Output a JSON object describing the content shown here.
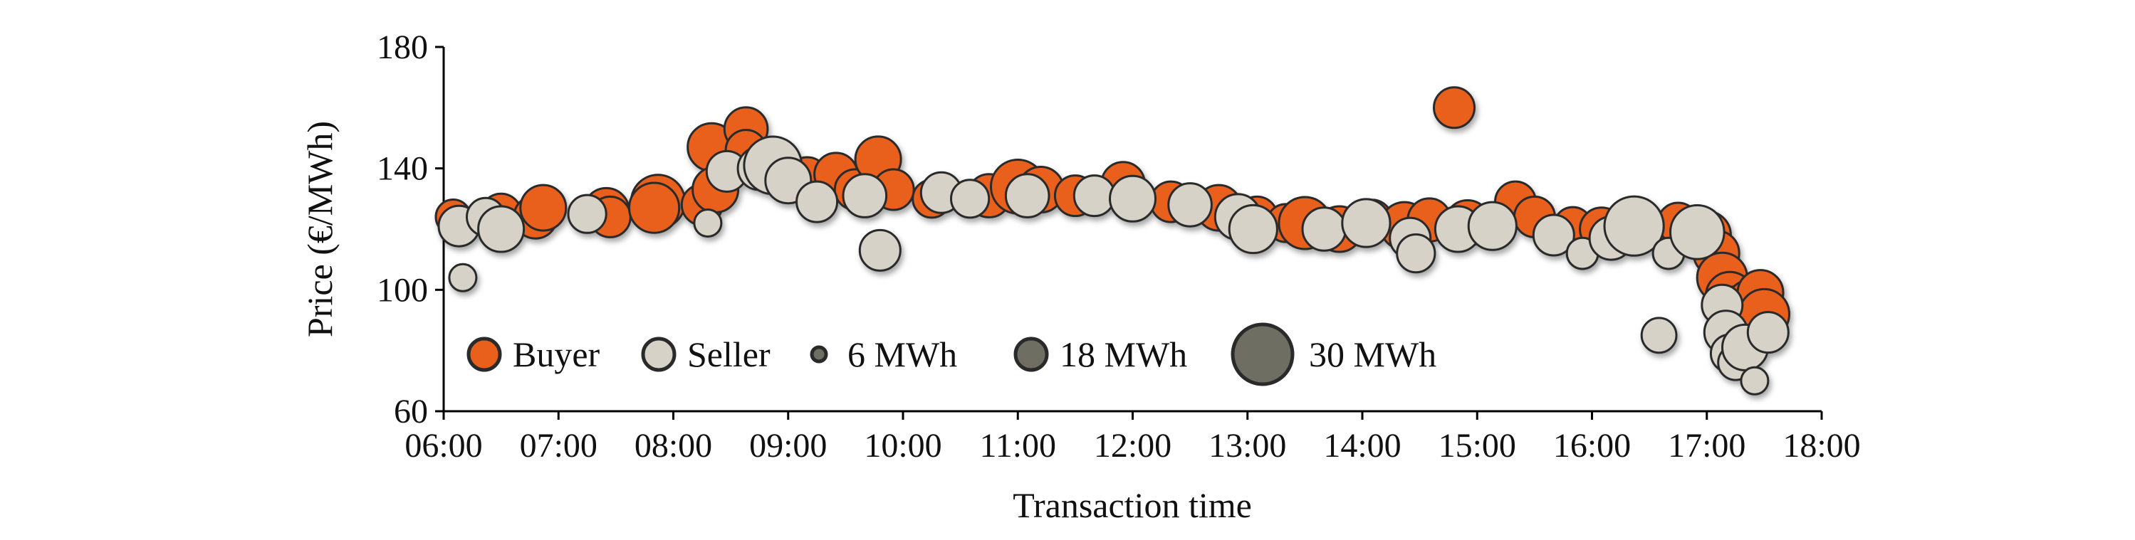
{
  "chart_data": {
    "type": "scatter",
    "title": "",
    "xlabel": "Transaction time",
    "ylabel": "Price (€/MWh)",
    "x_ticks": [
      "06:00",
      "07:00",
      "08:00",
      "09:00",
      "10:00",
      "11:00",
      "12:00",
      "13:00",
      "14:00",
      "15:00",
      "16:00",
      "17:00",
      "18:00"
    ],
    "y_ticks": [
      "60",
      "100",
      "140",
      "180"
    ],
    "xlim": [
      "06:00",
      "18:00"
    ],
    "ylim": [
      60,
      180
    ],
    "grid": false,
    "legend": {
      "placement": "lower-left",
      "entries": [
        {
          "label": "Buyer",
          "kind": "color",
          "color": "#e8601c"
        },
        {
          "label": "Seller",
          "kind": "color",
          "color": "#d6d2c7"
        },
        {
          "label": "6 MWh",
          "kind": "size",
          "volume": 6
        },
        {
          "label": "18 MWh",
          "kind": "size",
          "volume": 18
        },
        {
          "label": "30 MWh",
          "kind": "size",
          "volume": 30
        }
      ]
    },
    "colors": {
      "buyer": "#e8601c",
      "seller": "#d6d2c7",
      "size_swatch": "#6f6e63",
      "edge": "#2a2a2a"
    },
    "series": [
      {
        "name": "Buyer",
        "points": [
          {
            "x": "06:05",
            "y": 124,
            "v": 8
          },
          {
            "x": "06:30",
            "y": 125,
            "v": 12
          },
          {
            "x": "06:48",
            "y": 124,
            "v": 14
          },
          {
            "x": "06:52",
            "y": 127,
            "v": 16
          },
          {
            "x": "07:25",
            "y": 126,
            "v": 16
          },
          {
            "x": "07:27",
            "y": 124,
            "v": 12
          },
          {
            "x": "07:52",
            "y": 129,
            "v": 24
          },
          {
            "x": "07:50",
            "y": 127,
            "v": 20
          },
          {
            "x": "08:15",
            "y": 128,
            "v": 12
          },
          {
            "x": "08:20",
            "y": 147,
            "v": 18
          },
          {
            "x": "08:22",
            "y": 133,
            "v": 16
          },
          {
            "x": "08:38",
            "y": 153,
            "v": 14
          },
          {
            "x": "08:38",
            "y": 146,
            "v": 12
          },
          {
            "x": "09:10",
            "y": 137,
            "v": 12
          },
          {
            "x": "09:25",
            "y": 138,
            "v": 14
          },
          {
            "x": "09:35",
            "y": 133,
            "v": 12
          },
          {
            "x": "09:47",
            "y": 143,
            "v": 16
          },
          {
            "x": "09:55",
            "y": 133,
            "v": 12
          },
          {
            "x": "10:15",
            "y": 130,
            "v": 10
          },
          {
            "x": "10:45",
            "y": 131,
            "v": 14
          },
          {
            "x": "11:00",
            "y": 134,
            "v": 24
          },
          {
            "x": "11:12",
            "y": 133,
            "v": 16
          },
          {
            "x": "11:30",
            "y": 131,
            "v": 12
          },
          {
            "x": "11:55",
            "y": 135,
            "v": 14
          },
          {
            "x": "12:20",
            "y": 129,
            "v": 12
          },
          {
            "x": "12:45",
            "y": 127,
            "v": 16
          },
          {
            "x": "13:05",
            "y": 124,
            "v": 12
          },
          {
            "x": "13:20",
            "y": 122,
            "v": 10
          },
          {
            "x": "13:30",
            "y": 122,
            "v": 22
          },
          {
            "x": "13:48",
            "y": 120,
            "v": 16
          },
          {
            "x": "14:05",
            "y": 123,
            "v": 12
          },
          {
            "x": "14:22",
            "y": 121,
            "v": 18
          },
          {
            "x": "14:35",
            "y": 123,
            "v": 14
          },
          {
            "x": "14:48",
            "y": 160,
            "v": 12
          },
          {
            "x": "14:55",
            "y": 122,
            "v": 16
          },
          {
            "x": "15:20",
            "y": 129,
            "v": 12
          },
          {
            "x": "15:30",
            "y": 124,
            "v": 12
          },
          {
            "x": "15:50",
            "y": 121,
            "v": 10
          },
          {
            "x": "16:05",
            "y": 120,
            "v": 14
          },
          {
            "x": "16:45",
            "y": 122,
            "v": 12
          },
          {
            "x": "17:00",
            "y": 118,
            "v": 18
          },
          {
            "x": "17:05",
            "y": 112,
            "v": 16
          },
          {
            "x": "17:08",
            "y": 104,
            "v": 20
          },
          {
            "x": "17:12",
            "y": 98,
            "v": 18
          },
          {
            "x": "17:15",
            "y": 94,
            "v": 14
          },
          {
            "x": "17:18",
            "y": 90,
            "v": 20
          },
          {
            "x": "17:22",
            "y": 96,
            "v": 14
          },
          {
            "x": "17:25",
            "y": 88,
            "v": 12
          },
          {
            "x": "17:28",
            "y": 99,
            "v": 16
          },
          {
            "x": "17:30",
            "y": 92,
            "v": 20
          }
        ]
      },
      {
        "name": "Seller",
        "points": [
          {
            "x": "06:08",
            "y": 121,
            "v": 12
          },
          {
            "x": "06:10",
            "y": 104,
            "v": 4
          },
          {
            "x": "06:22",
            "y": 124,
            "v": 10
          },
          {
            "x": "06:30",
            "y": 120,
            "v": 16
          },
          {
            "x": "07:15",
            "y": 125,
            "v": 10
          },
          {
            "x": "08:18",
            "y": 122,
            "v": 4
          },
          {
            "x": "08:28",
            "y": 139,
            "v": 12
          },
          {
            "x": "08:45",
            "y": 140,
            "v": 14
          },
          {
            "x": "08:52",
            "y": 141,
            "v": 28
          },
          {
            "x": "09:00",
            "y": 136,
            "v": 16
          },
          {
            "x": "09:15",
            "y": 129,
            "v": 12
          },
          {
            "x": "09:40",
            "y": 131,
            "v": 14
          },
          {
            "x": "09:48",
            "y": 113,
            "v": 12
          },
          {
            "x": "10:20",
            "y": 132,
            "v": 12
          },
          {
            "x": "10:35",
            "y": 130,
            "v": 10
          },
          {
            "x": "11:05",
            "y": 131,
            "v": 14
          },
          {
            "x": "11:40",
            "y": 131,
            "v": 12
          },
          {
            "x": "12:00",
            "y": 130,
            "v": 16
          },
          {
            "x": "12:30",
            "y": 128,
            "v": 14
          },
          {
            "x": "12:55",
            "y": 124,
            "v": 16
          },
          {
            "x": "13:03",
            "y": 120,
            "v": 18
          },
          {
            "x": "13:40",
            "y": 120,
            "v": 14
          },
          {
            "x": "14:02",
            "y": 122,
            "v": 18
          },
          {
            "x": "14:25",
            "y": 117,
            "v": 12
          },
          {
            "x": "14:28",
            "y": 112,
            "v": 10
          },
          {
            "x": "14:50",
            "y": 120,
            "v": 16
          },
          {
            "x": "15:08",
            "y": 121,
            "v": 18
          },
          {
            "x": "15:40",
            "y": 118,
            "v": 12
          },
          {
            "x": "15:55",
            "y": 112,
            "v": 6
          },
          {
            "x": "16:10",
            "y": 117,
            "v": 14
          },
          {
            "x": "16:22",
            "y": 121,
            "v": 30
          },
          {
            "x": "16:40",
            "y": 112,
            "v": 6
          },
          {
            "x": "16:35",
            "y": 85,
            "v": 8
          },
          {
            "x": "16:55",
            "y": 119,
            "v": 24
          },
          {
            "x": "17:08",
            "y": 95,
            "v": 12
          },
          {
            "x": "17:10",
            "y": 86,
            "v": 14
          },
          {
            "x": "17:12",
            "y": 79,
            "v": 10
          },
          {
            "x": "17:15",
            "y": 76,
            "v": 8
          },
          {
            "x": "17:20",
            "y": 81,
            "v": 16
          },
          {
            "x": "17:25",
            "y": 70,
            "v": 4
          },
          {
            "x": "17:32",
            "y": 86,
            "v": 12
          }
        ]
      }
    ]
  }
}
